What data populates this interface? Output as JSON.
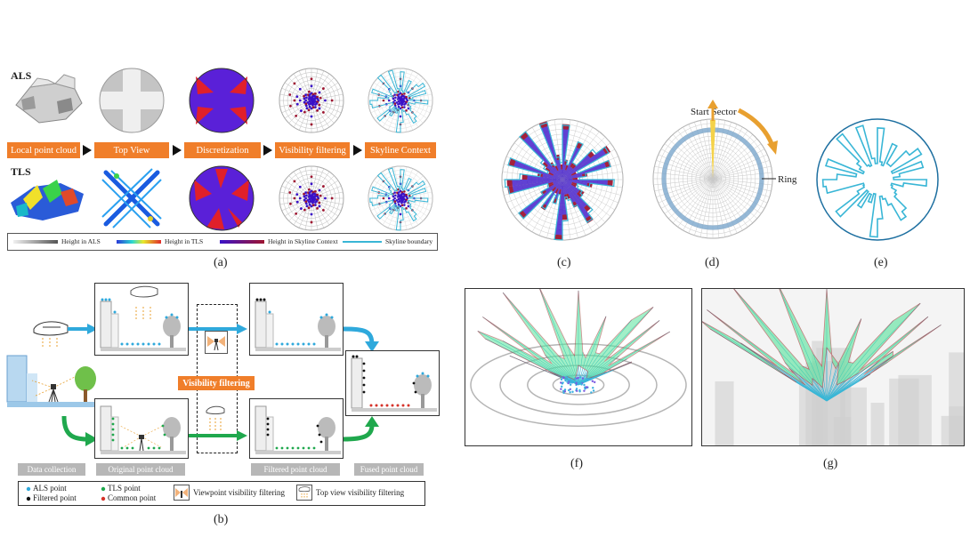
{
  "panel_a": {
    "row_als": "ALS",
    "row_tls": "TLS",
    "stages": [
      "Local point cloud",
      "Top View",
      "Discretization",
      "Visibility filtering",
      "Skyline Context"
    ],
    "legend": [
      "Height in ALS",
      "Height in TLS",
      "Height in Skyline Context",
      "Skyline boundary"
    ],
    "caption": "(a)"
  },
  "panel_b": {
    "filter_label": "Visibility filtering",
    "stage_labels": [
      "Data collection",
      "Original point cloud",
      "Filtered point cloud",
      "Fused point cloud"
    ],
    "legend": {
      "als_point": "ALS point",
      "tls_point": "TLS point",
      "filtered_point": "Filtered point",
      "common_point": "Common point",
      "viewpoint_filter": "Viewpoint visibility filtering",
      "topview_filter": "Top view visibility filtering"
    },
    "caption": "(b)"
  },
  "panel_d": {
    "start_sector": "Start Sector",
    "ring": "Ring",
    "caption": "(d)"
  },
  "captions": {
    "c": "(c)",
    "e": "(e)",
    "f": "(f)",
    "g": "(g)"
  },
  "colors": {
    "orange": "#f07e2a",
    "als_blue": "#2fa9dc",
    "tls_green": "#1fa84d",
    "skyline_cyan": "#39b6d6",
    "skyline_fill": "#57e39b",
    "context_purple": "#3a12c8",
    "context_red": "#9e1530"
  }
}
